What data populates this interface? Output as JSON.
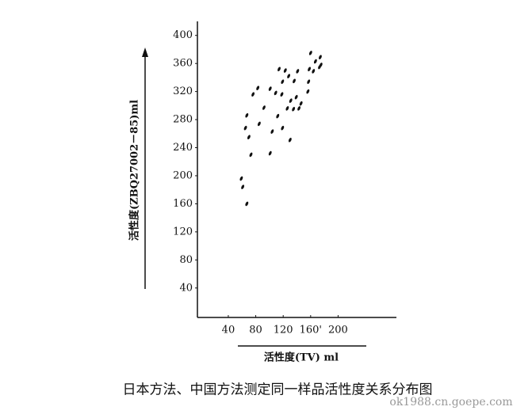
{
  "chart_data": {
    "type": "scatter",
    "y_label": "活性度(ZBQ27002－85)ml",
    "x_label": "活性度(TV) ml",
    "caption": "日本方法、中国方法测定同一样品活性度关系分布图",
    "watermark": "ok1988.cn.goepe.com",
    "color": "#111111",
    "x": [
      59,
      61,
      67,
      65,
      67,
      70,
      73,
      76,
      83,
      85,
      92,
      101,
      104,
      101,
      109,
      112,
      114,
      118,
      119,
      123,
      126,
      128,
      131,
      136,
      135,
      139,
      141,
      143,
      130,
      146,
      157,
      158,
      160,
      164,
      167,
      173,
      174,
      175,
      119,
      156
    ],
    "values": [
      196,
      184,
      160,
      268,
      286,
      255,
      230,
      316,
      325,
      274,
      297,
      232,
      263,
      324,
      318,
      285,
      352,
      316,
      334,
      350,
      296,
      342,
      307,
      335,
      295,
      312,
      349,
      296,
      251,
      303,
      334,
      352,
      375,
      349,
      363,
      355,
      369,
      358,
      268,
      320
    ],
    "xlim": [
      -5,
      285
    ],
    "ylim": [
      -2,
      420
    ],
    "xticks": [
      40,
      80,
      120,
      {
        "value": 160,
        "label": "160'"
      },
      200
    ],
    "yticks": [
      40,
      80,
      120,
      160,
      200,
      240,
      280,
      320,
      360,
      400
    ]
  }
}
